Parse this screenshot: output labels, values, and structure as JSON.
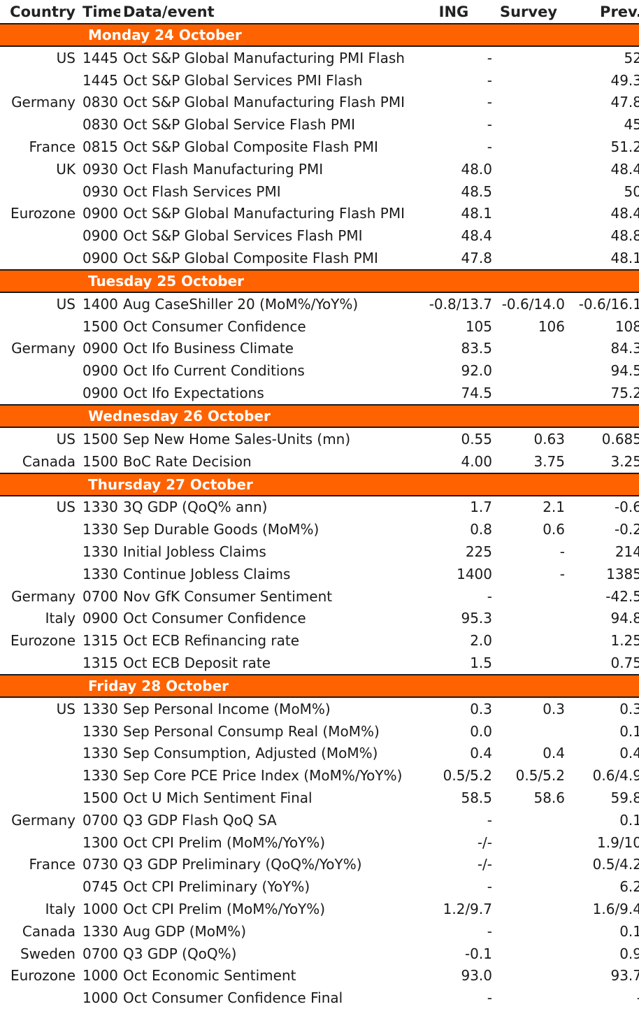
{
  "headers": {
    "country": "Country",
    "time": "Time",
    "event": "Data/event",
    "ing": "ING",
    "survey": "Survey",
    "prev": "Prev."
  },
  "days": [
    {
      "label": "Monday 24 October",
      "rows": [
        {
          "country": "US",
          "time": "1445",
          "event": "Oct S&P Global Manufacturing PMI Flash",
          "ing": "-",
          "survey": "",
          "prev": "52"
        },
        {
          "country": "",
          "time": "1445",
          "event": "Oct S&P Global Services PMI Flash",
          "ing": "-",
          "survey": "",
          "prev": "49.3"
        },
        {
          "country": "Germany",
          "time": "0830",
          "event": "Oct S&P Global Manufacturing Flash PMI",
          "ing": "-",
          "survey": "",
          "prev": "47.8"
        },
        {
          "country": "",
          "time": "0830",
          "event": "Oct S&P Global Service Flash PMI",
          "ing": "-",
          "survey": "",
          "prev": "45"
        },
        {
          "country": "France",
          "time": "0815",
          "event": "Oct S&P Global Composite Flash PMI",
          "ing": "-",
          "survey": "",
          "prev": "51.2"
        },
        {
          "country": "UK",
          "time": "0930",
          "event": "Oct Flash Manufacturing PMI",
          "ing": "48.0",
          "survey": "",
          "prev": "48.4"
        },
        {
          "country": "",
          "time": "0930",
          "event": "Oct Flash Services PMI",
          "ing": "48.5",
          "survey": "",
          "prev": "50"
        },
        {
          "country": "Eurozone",
          "time": "0900",
          "event": "Oct S&P Global Manufacturing Flash PMI",
          "ing": "48.1",
          "survey": "",
          "prev": "48.4"
        },
        {
          "country": "",
          "time": "0900",
          "event": "Oct S&P Global Services Flash PMI",
          "ing": "48.4",
          "survey": "",
          "prev": "48.8"
        },
        {
          "country": "",
          "time": "0900",
          "event": "Oct S&P Global Composite Flash PMI",
          "ing": "47.8",
          "survey": "",
          "prev": "48.1"
        }
      ]
    },
    {
      "label": "Tuesday 25 October",
      "rows": [
        {
          "country": "US",
          "time": "1400",
          "event": "Aug CaseShiller 20 (MoM%/YoY%)",
          "ing": "-0.8/13.7",
          "survey": "-0.6/14.0",
          "prev": "-0.6/16.1"
        },
        {
          "country": "",
          "time": "1500",
          "event": "Oct Consumer Confidence",
          "ing": "105",
          "survey": "106",
          "prev": "108"
        },
        {
          "country": "Germany",
          "time": "0900",
          "event": "Oct Ifo Business Climate",
          "ing": "83.5",
          "survey": "",
          "prev": "84.3"
        },
        {
          "country": "",
          "time": "0900",
          "event": "Oct Ifo Current Conditions",
          "ing": "92.0",
          "survey": "",
          "prev": "94.5"
        },
        {
          "country": "",
          "time": "0900",
          "event": "Oct Ifo Expectations",
          "ing": "74.5",
          "survey": "",
          "prev": "75.2"
        }
      ]
    },
    {
      "label": "Wednesday 26 October",
      "rows": [
        {
          "country": "US",
          "time": "1500",
          "event": "Sep New Home Sales-Units (mn)",
          "ing": "0.55",
          "survey": "0.63",
          "prev": "0.685"
        },
        {
          "country": "Canada",
          "time": "1500",
          "event": "BoC Rate Decision",
          "ing": "4.00",
          "survey": "3.75",
          "prev": "3.25"
        }
      ]
    },
    {
      "label": "Thursday 27 October",
      "rows": [
        {
          "country": "US",
          "time": "1330",
          "event": "3Q GDP (QoQ% ann)",
          "ing": "1.7",
          "survey": "2.1",
          "prev": "-0.6"
        },
        {
          "country": "",
          "time": "1330",
          "event": "Sep Durable Goods (MoM%)",
          "ing": "0.8",
          "survey": "0.6",
          "prev": "-0.2"
        },
        {
          "country": "",
          "time": "1330",
          "event": "Initial Jobless Claims",
          "ing": "225",
          "survey": "-",
          "prev": "214"
        },
        {
          "country": "",
          "time": "1330",
          "event": "Continue Jobless Claims",
          "ing": "1400",
          "survey": "-",
          "prev": "1385"
        },
        {
          "country": "Germany",
          "time": "0700",
          "event": "Nov GfK Consumer Sentiment",
          "ing": "-",
          "survey": "",
          "prev": "-42.5"
        },
        {
          "country": "Italy",
          "time": "0900",
          "event": "Oct Consumer Confidence",
          "ing": "95.3",
          "survey": "",
          "prev": "94.8"
        },
        {
          "country": "Eurozone",
          "time": "1315",
          "event": "Oct ECB Refinancing rate",
          "ing": "2.0",
          "survey": "",
          "prev": "1.25"
        },
        {
          "country": "",
          "time": "1315",
          "event": "Oct ECB Deposit rate",
          "ing": "1.5",
          "survey": "",
          "prev": "0.75"
        }
      ]
    },
    {
      "label": "Friday 28 October",
      "rows": [
        {
          "country": "US",
          "time": "1330",
          "event": "Sep Personal Income (MoM%)",
          "ing": "0.3",
          "survey": "0.3",
          "prev": "0.3"
        },
        {
          "country": "",
          "time": "1330",
          "event": "Sep Personal Consump Real (MoM%)",
          "ing": "0.0",
          "survey": "",
          "prev": "0.1"
        },
        {
          "country": "",
          "time": "1330",
          "event": "Sep Consumption, Adjusted (MoM%)",
          "ing": "0.4",
          "survey": "0.4",
          "prev": "0.4"
        },
        {
          "country": "",
          "time": "1330",
          "event": "Sep Core PCE Price Index (MoM%/YoY%)",
          "ing": "0.5/5.2",
          "survey": "0.5/5.2",
          "prev": "0.6/4.9"
        },
        {
          "country": "",
          "time": "1500",
          "event": "Oct U Mich Sentiment Final",
          "ing": "58.5",
          "survey": "58.6",
          "prev": "59.8"
        },
        {
          "country": "Germany",
          "time": "0700",
          "event": "Q3 GDP Flash QoQ SA",
          "ing": "-",
          "survey": "",
          "prev": "0.1"
        },
        {
          "country": "",
          "time": "1300",
          "event": "Oct CPI Prelim (MoM%/YoY%)",
          "ing": "-/-",
          "survey": "",
          "prev": "1.9/10"
        },
        {
          "country": "France",
          "time": "0730",
          "event": "Q3 GDP Preliminary (QoQ%/YoY%)",
          "ing": "-/-",
          "survey": "",
          "prev": "0.5/4.2"
        },
        {
          "country": "",
          "time": "0745",
          "event": "Oct CPI  Preliminary (YoY%)",
          "ing": "-",
          "survey": "",
          "prev": "6.2"
        },
        {
          "country": "Italy",
          "time": "1000",
          "event": "Oct CPI Prelim (MoM%/YoY%)",
          "ing": "1.2/9.7",
          "survey": "",
          "prev": "1.6/9.4"
        },
        {
          "country": "Canada",
          "time": "1330",
          "event": "Aug GDP (MoM%)",
          "ing": "-",
          "survey": "",
          "prev": "0.1"
        },
        {
          "country": "Sweden",
          "time": "0700",
          "event": "Q3 GDP (QoQ%)",
          "ing": "-0.1",
          "survey": "",
          "prev": "0.9"
        },
        {
          "country": "Eurozone",
          "time": "1000",
          "event": "Oct Economic Sentiment",
          "ing": "93.0",
          "survey": "",
          "prev": "93.7"
        },
        {
          "country": "",
          "time": "1000",
          "event": "Oct Consumer Confidence Final",
          "ing": "-",
          "survey": "",
          "prev": "-"
        }
      ]
    }
  ]
}
